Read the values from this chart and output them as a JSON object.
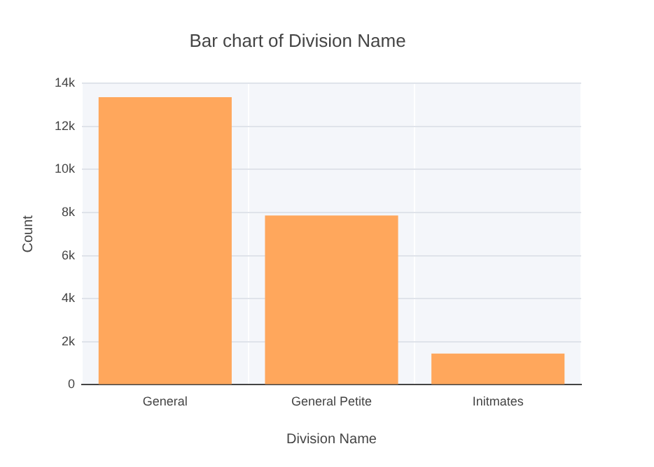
{
  "chart_data": {
    "type": "bar",
    "title": "Bar chart of Division Name",
    "xlabel": "Division Name",
    "ylabel": "Count",
    "categories": [
      "General",
      "General Petite",
      "Initmates"
    ],
    "values": [
      13360,
      7860,
      1450
    ],
    "color": "#ffa75c",
    "ylim": [
      0,
      14000
    ],
    "yticks": [
      0,
      {
        "value": 2000,
        "label": "2k"
      },
      {
        "value": 4000,
        "label": "4k"
      },
      {
        "value": 6000,
        "label": "6k"
      },
      {
        "value": 8000,
        "label": "8k"
      },
      {
        "value": 10000,
        "label": "10k"
      },
      {
        "value": 12000,
        "label": "12k"
      },
      {
        "value": 14000,
        "label": "14k"
      }
    ],
    "grid": true
  }
}
